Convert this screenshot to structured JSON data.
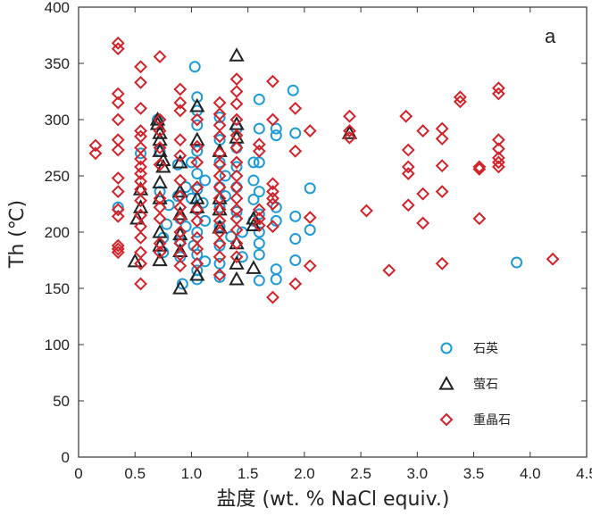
{
  "chart_data": {
    "type": "scatter",
    "title": "",
    "panel_label": "a",
    "xlabel": "盐度 (wt. % NaCl equiv.)",
    "ylabel": "Th (℃)",
    "xlim": [
      0,
      4.5
    ],
    "ylim": [
      0,
      400
    ],
    "xticks": [
      "0",
      "0.5",
      "1.0",
      "1.5",
      "2.0",
      "2.5",
      "3.0",
      "3.5",
      "4.0",
      "4.5"
    ],
    "yticks": [
      "0",
      "50",
      "100",
      "150",
      "200",
      "250",
      "300",
      "350",
      "400"
    ],
    "grid": false,
    "legend_position": "bottom-right",
    "series": [
      {
        "name": "石英",
        "marker": "circle",
        "color": "#1e9bd7",
        "points": [
          [
            0.35,
            222
          ],
          [
            0.55,
            270
          ],
          [
            0.7,
            300
          ],
          [
            0.72,
            272
          ],
          [
            0.72,
            236
          ],
          [
            0.75,
            195
          ],
          [
            0.75,
            182
          ],
          [
            0.78,
            207
          ],
          [
            0.8,
            224
          ],
          [
            0.88,
            260
          ],
          [
            0.88,
            232
          ],
          [
            0.9,
            212
          ],
          [
            0.9,
            192
          ],
          [
            0.9,
            178
          ],
          [
            0.92,
            154
          ],
          [
            0.95,
            240
          ],
          [
            0.95,
            205
          ],
          [
            1.0,
            262
          ],
          [
            1.0,
            230
          ],
          [
            1.02,
            188
          ],
          [
            1.03,
            347
          ],
          [
            1.05,
            320
          ],
          [
            1.05,
            308
          ],
          [
            1.05,
            295
          ],
          [
            1.05,
            272
          ],
          [
            1.05,
            252
          ],
          [
            1.05,
            238
          ],
          [
            1.05,
            220
          ],
          [
            1.05,
            200
          ],
          [
            1.05,
            180
          ],
          [
            1.05,
            166
          ],
          [
            1.05,
            158
          ],
          [
            1.1,
            226
          ],
          [
            1.12,
            246
          ],
          [
            1.12,
            210
          ],
          [
            1.12,
            174
          ],
          [
            1.25,
            302
          ],
          [
            1.25,
            282
          ],
          [
            1.25,
            262
          ],
          [
            1.25,
            240
          ],
          [
            1.25,
            222
          ],
          [
            1.25,
            205
          ],
          [
            1.25,
            188
          ],
          [
            1.25,
            172
          ],
          [
            1.25,
            160
          ],
          [
            1.3,
            250
          ],
          [
            1.3,
            232
          ],
          [
            1.35,
            196
          ],
          [
            1.4,
            292
          ],
          [
            1.4,
            275
          ],
          [
            1.4,
            258
          ],
          [
            1.4,
            240
          ],
          [
            1.4,
            218
          ],
          [
            1.45,
            200
          ],
          [
            1.45,
            178
          ],
          [
            1.55,
            262
          ],
          [
            1.55,
            246
          ],
          [
            1.55,
            229
          ],
          [
            1.55,
            210
          ],
          [
            1.6,
            318
          ],
          [
            1.6,
            292
          ],
          [
            1.6,
            262
          ],
          [
            1.6,
            236
          ],
          [
            1.6,
            216
          ],
          [
            1.6,
            200
          ],
          [
            1.6,
            190
          ],
          [
            1.6,
            180
          ],
          [
            1.6,
            157
          ],
          [
            1.75,
            292
          ],
          [
            1.75,
            286
          ],
          [
            1.75,
            222
          ],
          [
            1.75,
            210
          ],
          [
            1.75,
            167
          ],
          [
            1.75,
            158
          ],
          [
            1.9,
            326
          ],
          [
            1.92,
            288
          ],
          [
            1.92,
            214
          ],
          [
            1.92,
            194
          ],
          [
            1.92,
            175
          ],
          [
            2.05,
            239
          ],
          [
            2.05,
            202
          ],
          [
            3.88,
            173
          ]
        ]
      },
      {
        "name": "萤石",
        "marker": "triangle",
        "color": "#222222",
        "points": [
          [
            0.5,
            174
          ],
          [
            0.52,
            212
          ],
          [
            0.55,
            238
          ],
          [
            0.55,
            222
          ],
          [
            0.7,
            300
          ],
          [
            0.7,
            296
          ],
          [
            0.72,
            288
          ],
          [
            0.72,
            282
          ],
          [
            0.72,
            272
          ],
          [
            0.72,
            244
          ],
          [
            0.72,
            230
          ],
          [
            0.72,
            200
          ],
          [
            0.72,
            188
          ],
          [
            0.72,
            175
          ],
          [
            0.75,
            264
          ],
          [
            0.75,
            258
          ],
          [
            0.9,
            262
          ],
          [
            0.9,
            236
          ],
          [
            0.9,
            216
          ],
          [
            0.9,
            198
          ],
          [
            0.9,
            183
          ],
          [
            0.9,
            150
          ],
          [
            1.05,
            312
          ],
          [
            1.05,
            282
          ],
          [
            1.05,
            230
          ],
          [
            1.05,
            222
          ],
          [
            1.05,
            162
          ],
          [
            1.25,
            272
          ],
          [
            1.25,
            230
          ],
          [
            1.25,
            220
          ],
          [
            1.25,
            204
          ],
          [
            1.4,
            357
          ],
          [
            1.4,
            296
          ],
          [
            1.4,
            284
          ],
          [
            1.4,
            190
          ],
          [
            1.4,
            172
          ],
          [
            1.4,
            158
          ],
          [
            1.55,
            212
          ],
          [
            1.55,
            206
          ],
          [
            1.55,
            168
          ],
          [
            2.4,
            288
          ]
        ]
      },
      {
        "name": "重晶石",
        "marker": "diamond",
        "color": "#d2232a",
        "points": [
          [
            0.15,
            277
          ],
          [
            0.15,
            270
          ],
          [
            0.35,
            368
          ],
          [
            0.35,
            363
          ],
          [
            0.35,
            323
          ],
          [
            0.35,
            315
          ],
          [
            0.35,
            300
          ],
          [
            0.35,
            282
          ],
          [
            0.35,
            273
          ],
          [
            0.35,
            248
          ],
          [
            0.35,
            236
          ],
          [
            0.35,
            220
          ],
          [
            0.35,
            214
          ],
          [
            0.35,
            188
          ],
          [
            0.35,
            185
          ],
          [
            0.35,
            182
          ],
          [
            0.55,
            347
          ],
          [
            0.55,
            333
          ],
          [
            0.55,
            310
          ],
          [
            0.55,
            290
          ],
          [
            0.55,
            285
          ],
          [
            0.55,
            275
          ],
          [
            0.55,
            265
          ],
          [
            0.55,
            258
          ],
          [
            0.55,
            252
          ],
          [
            0.55,
            245
          ],
          [
            0.55,
            238
          ],
          [
            0.55,
            228
          ],
          [
            0.55,
            215
          ],
          [
            0.55,
            205
          ],
          [
            0.55,
            195
          ],
          [
            0.55,
            182
          ],
          [
            0.55,
            172
          ],
          [
            0.55,
            154
          ],
          [
            0.72,
            356
          ],
          [
            0.72,
            300
          ],
          [
            0.72,
            290
          ],
          [
            0.72,
            275
          ],
          [
            0.72,
            260
          ],
          [
            0.72,
            230
          ],
          [
            0.72,
            222
          ],
          [
            0.72,
            212
          ],
          [
            0.72,
            190
          ],
          [
            0.72,
            182
          ],
          [
            0.9,
            327
          ],
          [
            0.9,
            315
          ],
          [
            0.9,
            308
          ],
          [
            0.9,
            282
          ],
          [
            0.9,
            268
          ],
          [
            0.9,
            246
          ],
          [
            0.9,
            232
          ],
          [
            0.9,
            222
          ],
          [
            0.9,
            212
          ],
          [
            0.9,
            200
          ],
          [
            0.9,
            190
          ],
          [
            0.9,
            180
          ],
          [
            0.9,
            170
          ],
          [
            1.05,
            300
          ],
          [
            1.05,
            276
          ],
          [
            1.05,
            262
          ],
          [
            1.05,
            240
          ],
          [
            1.05,
            220
          ],
          [
            1.05,
            210
          ],
          [
            1.05,
            195
          ],
          [
            1.05,
            185
          ],
          [
            1.05,
            172
          ],
          [
            1.25,
            315
          ],
          [
            1.25,
            305
          ],
          [
            1.25,
            295
          ],
          [
            1.25,
            285
          ],
          [
            1.25,
            270
          ],
          [
            1.25,
            260
          ],
          [
            1.25,
            250
          ],
          [
            1.25,
            240
          ],
          [
            1.25,
            230
          ],
          [
            1.25,
            220
          ],
          [
            1.25,
            210
          ],
          [
            1.25,
            200
          ],
          [
            1.25,
            190
          ],
          [
            1.25,
            178
          ],
          [
            1.25,
            162
          ],
          [
            1.4,
            336
          ],
          [
            1.4,
            325
          ],
          [
            1.4,
            314
          ],
          [
            1.4,
            300
          ],
          [
            1.4,
            286
          ],
          [
            1.4,
            275
          ],
          [
            1.4,
            262
          ],
          [
            1.4,
            250
          ],
          [
            1.4,
            240
          ],
          [
            1.4,
            230
          ],
          [
            1.4,
            220
          ],
          [
            1.4,
            212
          ],
          [
            1.4,
            202
          ],
          [
            1.4,
            190
          ],
          [
            1.4,
            178
          ],
          [
            1.6,
            278
          ],
          [
            1.6,
            272
          ],
          [
            1.6,
            220
          ],
          [
            1.6,
            212
          ],
          [
            1.6,
            206
          ],
          [
            1.72,
            334
          ],
          [
            1.72,
            300
          ],
          [
            1.72,
            243
          ],
          [
            1.72,
            236
          ],
          [
            1.72,
            230
          ],
          [
            1.72,
            225
          ],
          [
            1.72,
            205
          ],
          [
            1.72,
            142
          ],
          [
            1.92,
            310
          ],
          [
            1.92,
            272
          ],
          [
            1.92,
            154
          ],
          [
            2.05,
            290
          ],
          [
            2.05,
            213
          ],
          [
            2.05,
            170
          ],
          [
            2.4,
            303
          ],
          [
            2.4,
            290
          ],
          [
            2.4,
            284
          ],
          [
            2.55,
            219
          ],
          [
            2.75,
            166
          ],
          [
            2.9,
            303
          ],
          [
            2.92,
            273
          ],
          [
            2.92,
            258
          ],
          [
            2.92,
            252
          ],
          [
            2.92,
            224
          ],
          [
            3.05,
            290
          ],
          [
            3.05,
            234
          ],
          [
            3.05,
            208
          ],
          [
            3.22,
            292
          ],
          [
            3.22,
            283
          ],
          [
            3.22,
            259
          ],
          [
            3.22,
            236
          ],
          [
            3.22,
            172
          ],
          [
            3.38,
            320
          ],
          [
            3.38,
            316
          ],
          [
            3.55,
            258
          ],
          [
            3.55,
            256
          ],
          [
            3.55,
            212
          ],
          [
            3.72,
            328
          ],
          [
            3.72,
            323
          ],
          [
            3.72,
            282
          ],
          [
            3.72,
            274
          ],
          [
            3.72,
            266
          ],
          [
            3.72,
            262
          ],
          [
            3.72,
            258
          ],
          [
            4.2,
            176
          ]
        ]
      }
    ]
  }
}
